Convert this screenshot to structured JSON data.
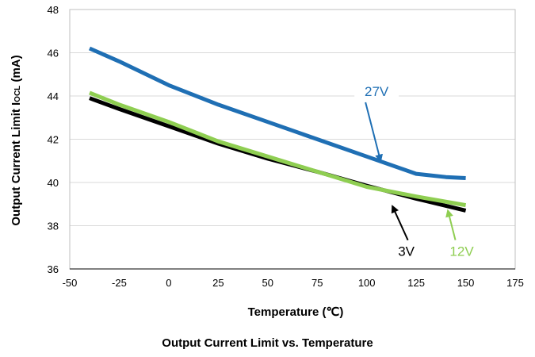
{
  "caption": "Output Current Limit vs. Temperature",
  "chart_data": {
    "type": "line",
    "title": "",
    "xlabel": "Temperature (℃)",
    "ylabel_main": "Output Current Limit I",
    "ylabel_sub": "OCL",
    "ylabel_unit": " (mA)",
    "xlim": [
      -50,
      175
    ],
    "ylim": [
      36,
      48
    ],
    "xticks": [
      -50,
      -25,
      0,
      25,
      50,
      75,
      100,
      125,
      150,
      175
    ],
    "yticks": [
      36,
      38,
      40,
      42,
      44,
      46,
      48
    ],
    "xtick_labels": [
      "-50",
      "-25",
      "0",
      "25",
      "50",
      "75",
      "100",
      "125",
      "150",
      "175"
    ],
    "ytick_labels": [
      "36",
      "38",
      "40",
      "42",
      "44",
      "46",
      "48"
    ],
    "grid": "horizontal",
    "legend": "none",
    "series": [
      {
        "name": "27V",
        "color": "#1f6fb4",
        "x": [
          -40,
          -25,
          0,
          25,
          50,
          75,
          100,
          125,
          140,
          150
        ],
        "y": [
          46.2,
          45.6,
          44.5,
          43.6,
          42.8,
          42.0,
          41.2,
          40.4,
          40.25,
          40.2
        ]
      },
      {
        "name": "12V",
        "color": "#8fce52",
        "x": [
          -40,
          -25,
          0,
          25,
          50,
          75,
          100,
          125,
          150
        ],
        "y": [
          44.15,
          43.6,
          42.8,
          41.9,
          41.2,
          40.5,
          39.8,
          39.35,
          38.95
        ]
      },
      {
        "name": "3V",
        "color": "#000000",
        "x": [
          -40,
          -25,
          0,
          25,
          50,
          75,
          100,
          125,
          150
        ],
        "y": [
          43.9,
          43.4,
          42.6,
          41.8,
          41.1,
          40.5,
          39.85,
          39.25,
          38.7
        ]
      }
    ],
    "annotations": [
      {
        "label": "27V",
        "color": "#1f6fb4",
        "text_at": [
          105,
          44.0
        ],
        "arrow_to": [
          107,
          41.0
        ]
      },
      {
        "label": "3V",
        "color": "#000000",
        "text_at": [
          120,
          36.6
        ],
        "arrow_to": [
          113,
          38.9
        ]
      },
      {
        "label": "12V",
        "color": "#8fce52",
        "text_at": [
          148,
          36.6
        ],
        "arrow_to": [
          141,
          38.7
        ]
      }
    ]
  }
}
